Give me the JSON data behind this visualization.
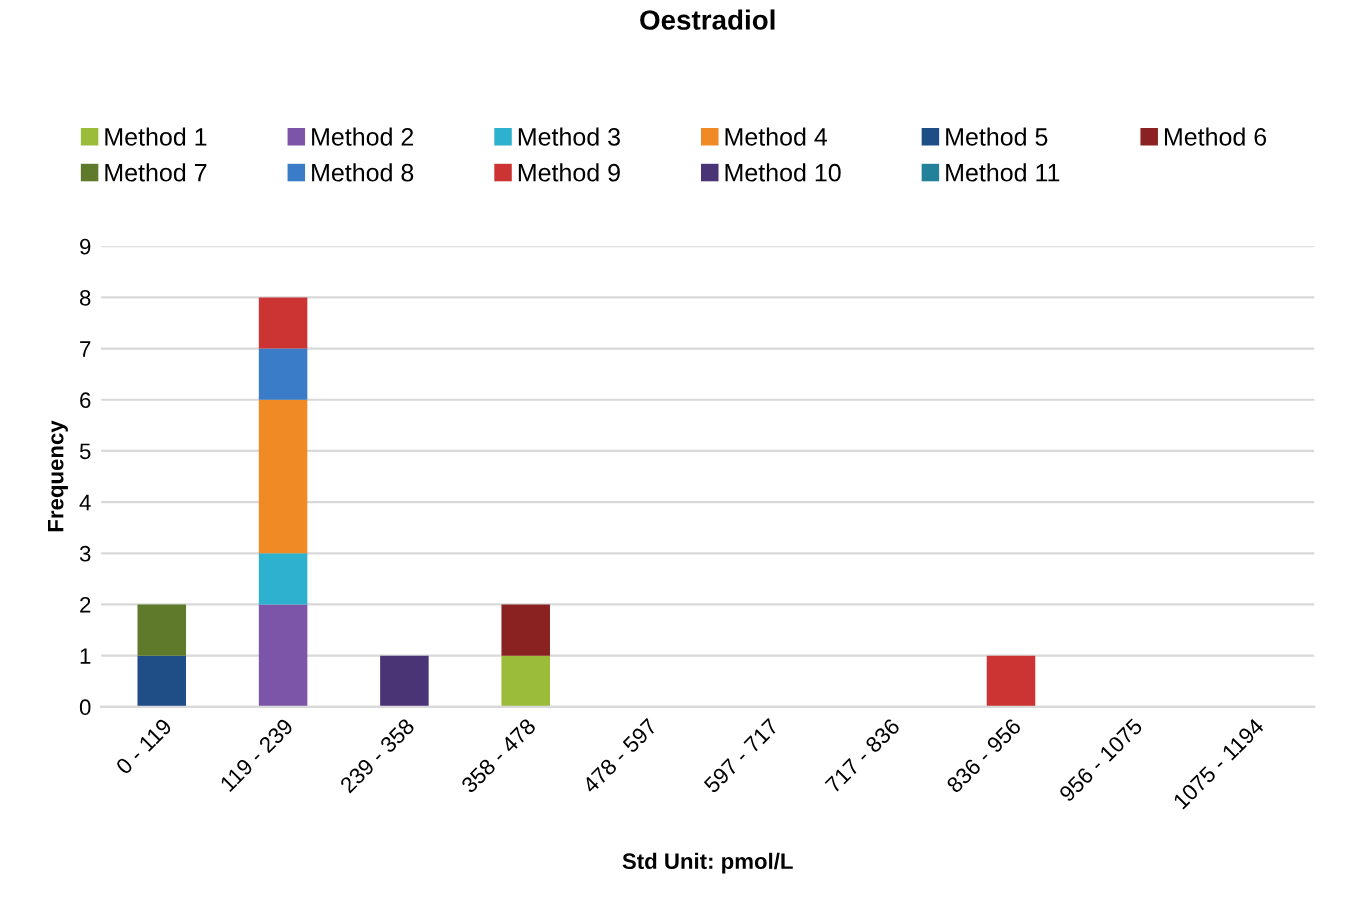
{
  "chart_data": {
    "type": "bar",
    "stacked": true,
    "title": "Oestradiol",
    "xlabel": "Std Unit: pmol/L",
    "ylabel": "Frequency",
    "categories": [
      "0 - 119",
      "119 - 239",
      "239 - 358",
      "358 - 478",
      "478 - 597",
      "597 - 717",
      "717 - 836",
      "836 - 956",
      "956 - 1075",
      "1075 - 1194"
    ],
    "series": [
      {
        "name": "Method 1",
        "color": "#9bbb3b",
        "values": [
          0,
          0,
          0,
          1,
          0,
          0,
          0,
          0,
          0,
          0
        ]
      },
      {
        "name": "Method 2",
        "color": "#7d55a8",
        "values": [
          0,
          2,
          0,
          0,
          0,
          0,
          0,
          0,
          0,
          0
        ]
      },
      {
        "name": "Method 3",
        "color": "#2eb1cf",
        "values": [
          0,
          1,
          0,
          0,
          0,
          0,
          0,
          0,
          0,
          0
        ]
      },
      {
        "name": "Method 4",
        "color": "#f08a24",
        "values": [
          0,
          3,
          0,
          0,
          0,
          0,
          0,
          0,
          0,
          0
        ]
      },
      {
        "name": "Method 5",
        "color": "#1f4e86",
        "values": [
          1,
          0,
          0,
          0,
          0,
          0,
          0,
          0,
          0,
          0
        ]
      },
      {
        "name": "Method 6",
        "color": "#8b2222",
        "values": [
          0,
          0,
          0,
          1,
          0,
          0,
          0,
          0,
          0,
          0
        ]
      },
      {
        "name": "Method 7",
        "color": "#5e7a2a",
        "values": [
          1,
          0,
          0,
          0,
          0,
          0,
          0,
          0,
          0,
          0
        ]
      },
      {
        "name": "Method 8",
        "color": "#3a7cc7",
        "values": [
          0,
          1,
          0,
          0,
          0,
          0,
          0,
          0,
          0,
          0
        ]
      },
      {
        "name": "Method 9",
        "color": "#cc3333",
        "values": [
          0,
          1,
          0,
          0,
          0,
          0,
          0,
          1,
          0,
          0
        ]
      },
      {
        "name": "Method 10",
        "color": "#4b3475",
        "values": [
          0,
          0,
          1,
          0,
          0,
          0,
          0,
          0,
          0,
          0
        ]
      },
      {
        "name": "Method 11",
        "color": "#23829a",
        "values": [
          0,
          0,
          0,
          0,
          0,
          0,
          0,
          0,
          0,
          0
        ]
      }
    ],
    "ylim": [
      0,
      9
    ],
    "yticks": [
      0,
      1,
      2,
      3,
      4,
      5,
      6,
      7,
      8,
      9
    ],
    "grid": "y",
    "legend": "top"
  }
}
